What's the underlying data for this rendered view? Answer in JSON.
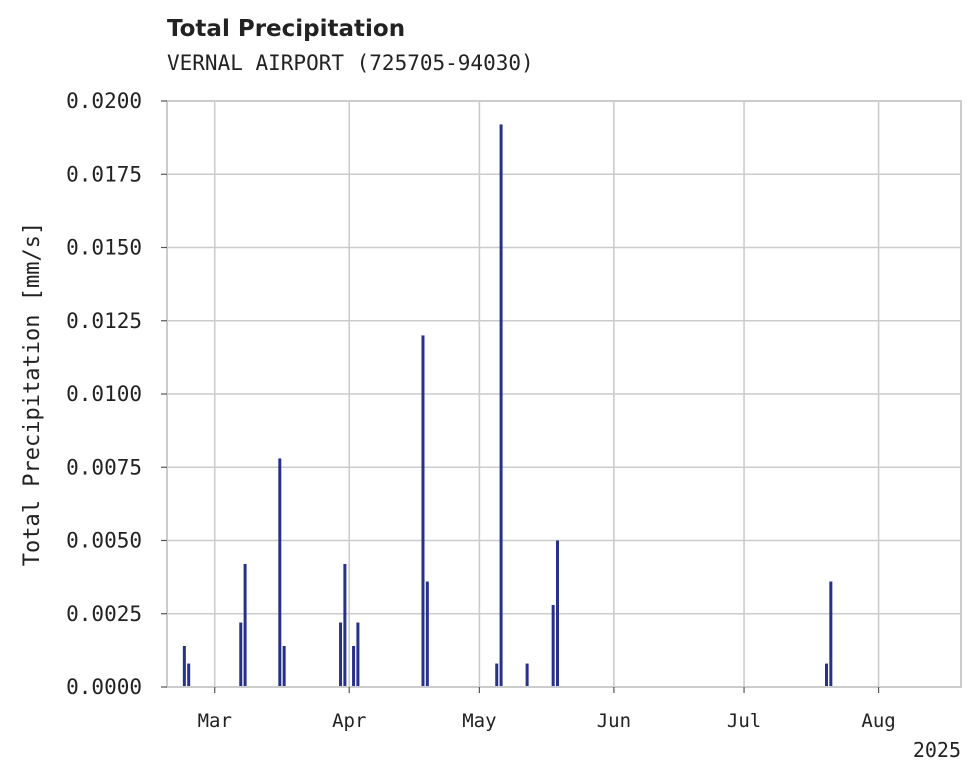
{
  "chart_data": {
    "type": "bar",
    "title": "Total Precipitation",
    "subtitle": "VERNAL AIRPORT (725705-94030)",
    "ylabel": "Total Precipitation [mm/s]",
    "xlabel": "",
    "year_label": "2025",
    "ylim": [
      0,
      0.02
    ],
    "y_ticks": [
      "0.0000",
      "0.0025",
      "0.0050",
      "0.0075",
      "0.0100",
      "0.0125",
      "0.0150",
      "0.0175",
      "0.0200"
    ],
    "x_ticks": [
      {
        "label": "Mar",
        "date": "2025-03-01"
      },
      {
        "label": "Apr",
        "date": "2025-04-01"
      },
      {
        "label": "May",
        "date": "2025-05-01"
      },
      {
        "label": "Jun",
        "date": "2025-06-01"
      },
      {
        "label": "Jul",
        "date": "2025-07-01"
      },
      {
        "label": "Aug",
        "date": "2025-08-01"
      }
    ],
    "xlim": [
      "2025-02-18",
      "2025-08-20"
    ],
    "grid": true,
    "color": "#27308a",
    "points": [
      {
        "x": "2025-02-22",
        "y": 0.0014
      },
      {
        "x": "2025-02-23",
        "y": 0.0008
      },
      {
        "x": "2025-03-07",
        "y": 0.0022
      },
      {
        "x": "2025-03-08",
        "y": 0.0042
      },
      {
        "x": "2025-03-16",
        "y": 0.0078
      },
      {
        "x": "2025-03-17",
        "y": 0.0014
      },
      {
        "x": "2025-03-30",
        "y": 0.0022
      },
      {
        "x": "2025-03-31",
        "y": 0.0042
      },
      {
        "x": "2025-04-02",
        "y": 0.0014
      },
      {
        "x": "2025-04-03",
        "y": 0.0022
      },
      {
        "x": "2025-04-18",
        "y": 0.012
      },
      {
        "x": "2025-04-19",
        "y": 0.0036
      },
      {
        "x": "2025-05-05",
        "y": 0.0008
      },
      {
        "x": "2025-05-06",
        "y": 0.0192
      },
      {
        "x": "2025-05-12",
        "y": 0.0008
      },
      {
        "x": "2025-05-18",
        "y": 0.0028
      },
      {
        "x": "2025-05-19",
        "y": 0.005
      },
      {
        "x": "2025-07-20",
        "y": 0.0008
      },
      {
        "x": "2025-07-21",
        "y": 0.0036
      }
    ]
  }
}
